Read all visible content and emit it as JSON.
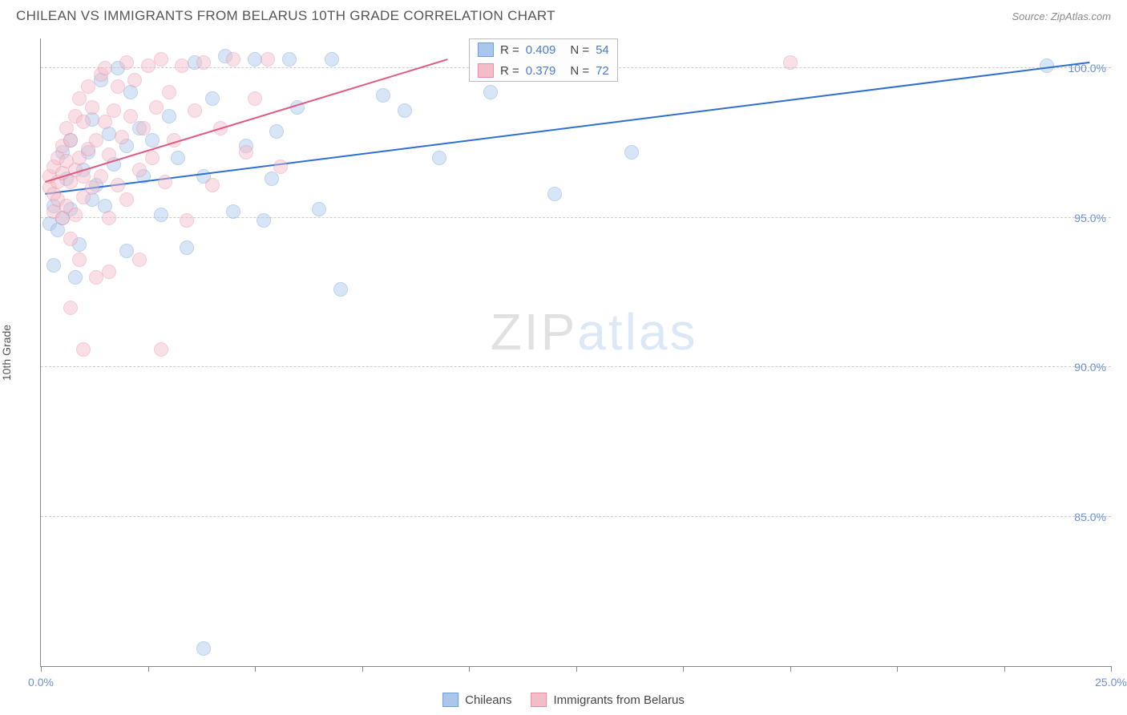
{
  "title": "CHILEAN VS IMMIGRANTS FROM BELARUS 10TH GRADE CORRELATION CHART",
  "source": "Source: ZipAtlas.com",
  "yaxis_label": "10th Grade",
  "watermark": {
    "left": "ZIP",
    "right": "atlas"
  },
  "chart": {
    "type": "scatter",
    "background_color": "#ffffff",
    "grid_color": "#cccccc",
    "axis_color": "#888888",
    "tick_label_color": "#6b8fd6",
    "tick_fontsize": 14,
    "xlim": [
      0,
      25
    ],
    "ylim": [
      80,
      101
    ],
    "xticks": [
      0,
      2.5,
      5,
      7.5,
      10,
      12.5,
      15,
      17.5,
      20,
      22.5,
      25
    ],
    "xtick_labels": {
      "0": "0.0%",
      "25": "25.0%"
    },
    "yticks": [
      85,
      90,
      95,
      100
    ],
    "ytick_labels": {
      "85": "85.0%",
      "90": "90.0%",
      "95": "95.0%",
      "100": "100.0%"
    },
    "marker_radius": 9,
    "marker_opacity": 0.45,
    "series": [
      {
        "key": "chileans",
        "label": "Chileans",
        "fill": "#a9c7ec",
        "stroke": "#6f9fd8",
        "line_color": "#2f6fd0",
        "R": "0.409",
        "N": "54",
        "trend": {
          "x1": 0.1,
          "y1": 95.8,
          "x2": 24.5,
          "y2": 100.2
        },
        "points": [
          [
            0.2,
            94.8
          ],
          [
            0.3,
            95.4
          ],
          [
            0.3,
            93.4
          ],
          [
            0.4,
            94.6
          ],
          [
            0.5,
            95.0
          ],
          [
            0.5,
            97.2
          ],
          [
            0.6,
            96.3
          ],
          [
            0.7,
            95.3
          ],
          [
            0.7,
            97.6
          ],
          [
            0.8,
            93.0
          ],
          [
            0.9,
            94.1
          ],
          [
            1.0,
            96.6
          ],
          [
            1.1,
            97.2
          ],
          [
            1.2,
            98.3
          ],
          [
            1.2,
            95.6
          ],
          [
            1.3,
            96.1
          ],
          [
            1.4,
            99.6
          ],
          [
            1.5,
            95.4
          ],
          [
            1.6,
            97.8
          ],
          [
            1.7,
            96.8
          ],
          [
            1.8,
            100.0
          ],
          [
            2.0,
            97.4
          ],
          [
            2.0,
            93.9
          ],
          [
            2.1,
            99.2
          ],
          [
            2.3,
            98.0
          ],
          [
            2.4,
            96.4
          ],
          [
            2.6,
            97.6
          ],
          [
            2.8,
            95.1
          ],
          [
            3.0,
            98.4
          ],
          [
            3.2,
            97.0
          ],
          [
            3.4,
            94.0
          ],
          [
            3.6,
            100.2
          ],
          [
            3.8,
            96.4
          ],
          [
            4.0,
            99.0
          ],
          [
            4.3,
            100.4
          ],
          [
            4.5,
            95.2
          ],
          [
            4.8,
            97.4
          ],
          [
            5.0,
            100.3
          ],
          [
            5.2,
            94.9
          ],
          [
            5.4,
            96.3
          ],
          [
            5.5,
            97.9
          ],
          [
            5.8,
            100.3
          ],
          [
            6.0,
            98.7
          ],
          [
            6.5,
            95.3
          ],
          [
            6.8,
            100.3
          ],
          [
            7.0,
            92.6
          ],
          [
            8.0,
            99.1
          ],
          [
            8.5,
            98.6
          ],
          [
            9.3,
            97.0
          ],
          [
            10.5,
            99.2
          ],
          [
            12.0,
            95.8
          ],
          [
            13.8,
            97.2
          ],
          [
            23.5,
            100.1
          ],
          [
            3.8,
            80.6
          ]
        ]
      },
      {
        "key": "belarus",
        "label": "Immigrants from Belarus",
        "fill": "#f3bcc9",
        "stroke": "#e88ba3",
        "line_color": "#e05a80",
        "R": "0.379",
        "N": "72",
        "trend": {
          "x1": 0.1,
          "y1": 96.2,
          "x2": 9.5,
          "y2": 100.3
        },
        "points": [
          [
            0.2,
            96.0
          ],
          [
            0.2,
            96.4
          ],
          [
            0.3,
            95.8
          ],
          [
            0.3,
            96.7
          ],
          [
            0.3,
            95.2
          ],
          [
            0.4,
            96.2
          ],
          [
            0.4,
            97.0
          ],
          [
            0.4,
            95.6
          ],
          [
            0.5,
            96.5
          ],
          [
            0.5,
            97.4
          ],
          [
            0.5,
            95.0
          ],
          [
            0.6,
            96.9
          ],
          [
            0.6,
            98.0
          ],
          [
            0.6,
            95.4
          ],
          [
            0.7,
            96.2
          ],
          [
            0.7,
            97.6
          ],
          [
            0.7,
            94.3
          ],
          [
            0.8,
            96.6
          ],
          [
            0.8,
            98.4
          ],
          [
            0.8,
            95.1
          ],
          [
            0.9,
            97.0
          ],
          [
            0.9,
            99.0
          ],
          [
            0.9,
            93.6
          ],
          [
            1.0,
            96.4
          ],
          [
            1.0,
            98.2
          ],
          [
            1.0,
            95.7
          ],
          [
            1.1,
            97.3
          ],
          [
            1.1,
            99.4
          ],
          [
            1.2,
            96.0
          ],
          [
            1.2,
            98.7
          ],
          [
            1.3,
            97.6
          ],
          [
            1.3,
            93.0
          ],
          [
            1.4,
            99.8
          ],
          [
            1.4,
            96.4
          ],
          [
            1.5,
            98.2
          ],
          [
            1.5,
            100.0
          ],
          [
            1.6,
            97.1
          ],
          [
            1.6,
            95.0
          ],
          [
            1.7,
            98.6
          ],
          [
            1.8,
            99.4
          ],
          [
            1.8,
            96.1
          ],
          [
            1.9,
            97.7
          ],
          [
            2.0,
            100.2
          ],
          [
            2.0,
            95.6
          ],
          [
            2.1,
            98.4
          ],
          [
            2.2,
            99.6
          ],
          [
            2.3,
            96.6
          ],
          [
            2.4,
            98.0
          ],
          [
            2.5,
            100.1
          ],
          [
            2.6,
            97.0
          ],
          [
            2.7,
            98.7
          ],
          [
            2.8,
            100.3
          ],
          [
            2.9,
            96.2
          ],
          [
            3.0,
            99.2
          ],
          [
            3.1,
            97.6
          ],
          [
            3.3,
            100.1
          ],
          [
            3.4,
            94.9
          ],
          [
            3.6,
            98.6
          ],
          [
            3.8,
            100.2
          ],
          [
            4.0,
            96.1
          ],
          [
            4.2,
            98.0
          ],
          [
            4.5,
            100.3
          ],
          [
            4.8,
            97.2
          ],
          [
            5.0,
            99.0
          ],
          [
            5.3,
            100.3
          ],
          [
            5.6,
            96.7
          ],
          [
            0.7,
            92.0
          ],
          [
            1.0,
            90.6
          ],
          [
            1.6,
            93.2
          ],
          [
            2.8,
            90.6
          ],
          [
            17.5,
            100.2
          ],
          [
            2.3,
            93.6
          ]
        ]
      }
    ]
  },
  "statsbox": {
    "left_pct": 40.0,
    "top_pct": 0.0,
    "rows": [
      {
        "fill": "#a9c7ec",
        "stroke": "#6f9fd8",
        "R": "0.409",
        "N": "54"
      },
      {
        "fill": "#f3bcc9",
        "stroke": "#e88ba3",
        "R": "0.379",
        "N": "72"
      }
    ]
  },
  "bottom_legend": [
    {
      "fill": "#a9c7ec",
      "stroke": "#6f9fd8",
      "label": "Chileans"
    },
    {
      "fill": "#f3bcc9",
      "stroke": "#e88ba3",
      "label": "Immigrants from Belarus"
    }
  ]
}
